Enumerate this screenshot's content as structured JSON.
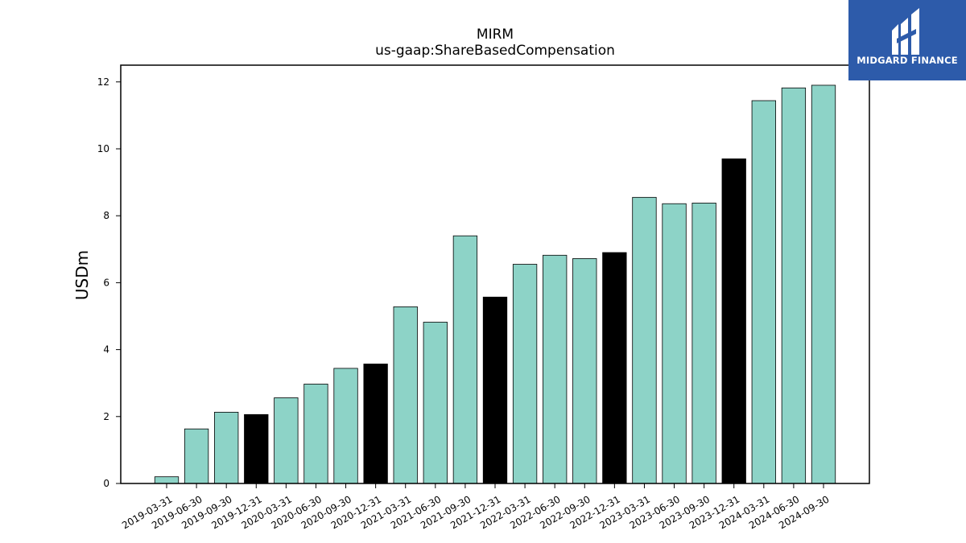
{
  "logo": {
    "text": "MIDGARD FINANCE"
  },
  "colors": {
    "regular": "#8dd3c7",
    "year_end": "#000000",
    "logo_bg": "#2d5baa"
  },
  "chart_data": {
    "type": "bar",
    "title": "MIRM",
    "subtitle": "us-gaap:ShareBasedCompensation",
    "xlabel": "",
    "ylabel": "USDm",
    "ylim": [
      0,
      12.5
    ],
    "yticks": [
      0,
      2,
      4,
      6,
      8,
      10,
      12
    ],
    "grid": false,
    "categories": [
      "2019-03-31",
      "2019-06-30",
      "2019-09-30",
      "2019-12-31",
      "2020-03-31",
      "2020-06-30",
      "2020-09-30",
      "2020-12-31",
      "2021-03-31",
      "2021-06-30",
      "2021-09-30",
      "2021-12-31",
      "2022-03-31",
      "2022-06-30",
      "2022-09-30",
      "2022-12-31",
      "2023-03-31",
      "2023-06-30",
      "2023-09-30",
      "2023-12-31",
      "2024-03-31",
      "2024-06-30",
      "2024-09-30"
    ],
    "values": [
      0.2,
      1.63,
      2.13,
      2.06,
      2.56,
      2.97,
      3.44,
      3.57,
      5.28,
      4.82,
      7.4,
      5.57,
      6.55,
      6.82,
      6.72,
      6.9,
      8.55,
      8.36,
      8.38,
      9.7,
      11.44,
      11.82,
      11.9
    ],
    "year_end_highlight": [
      false,
      false,
      false,
      true,
      false,
      false,
      false,
      true,
      false,
      false,
      false,
      true,
      false,
      false,
      false,
      true,
      false,
      false,
      false,
      true,
      false,
      false,
      false
    ]
  }
}
